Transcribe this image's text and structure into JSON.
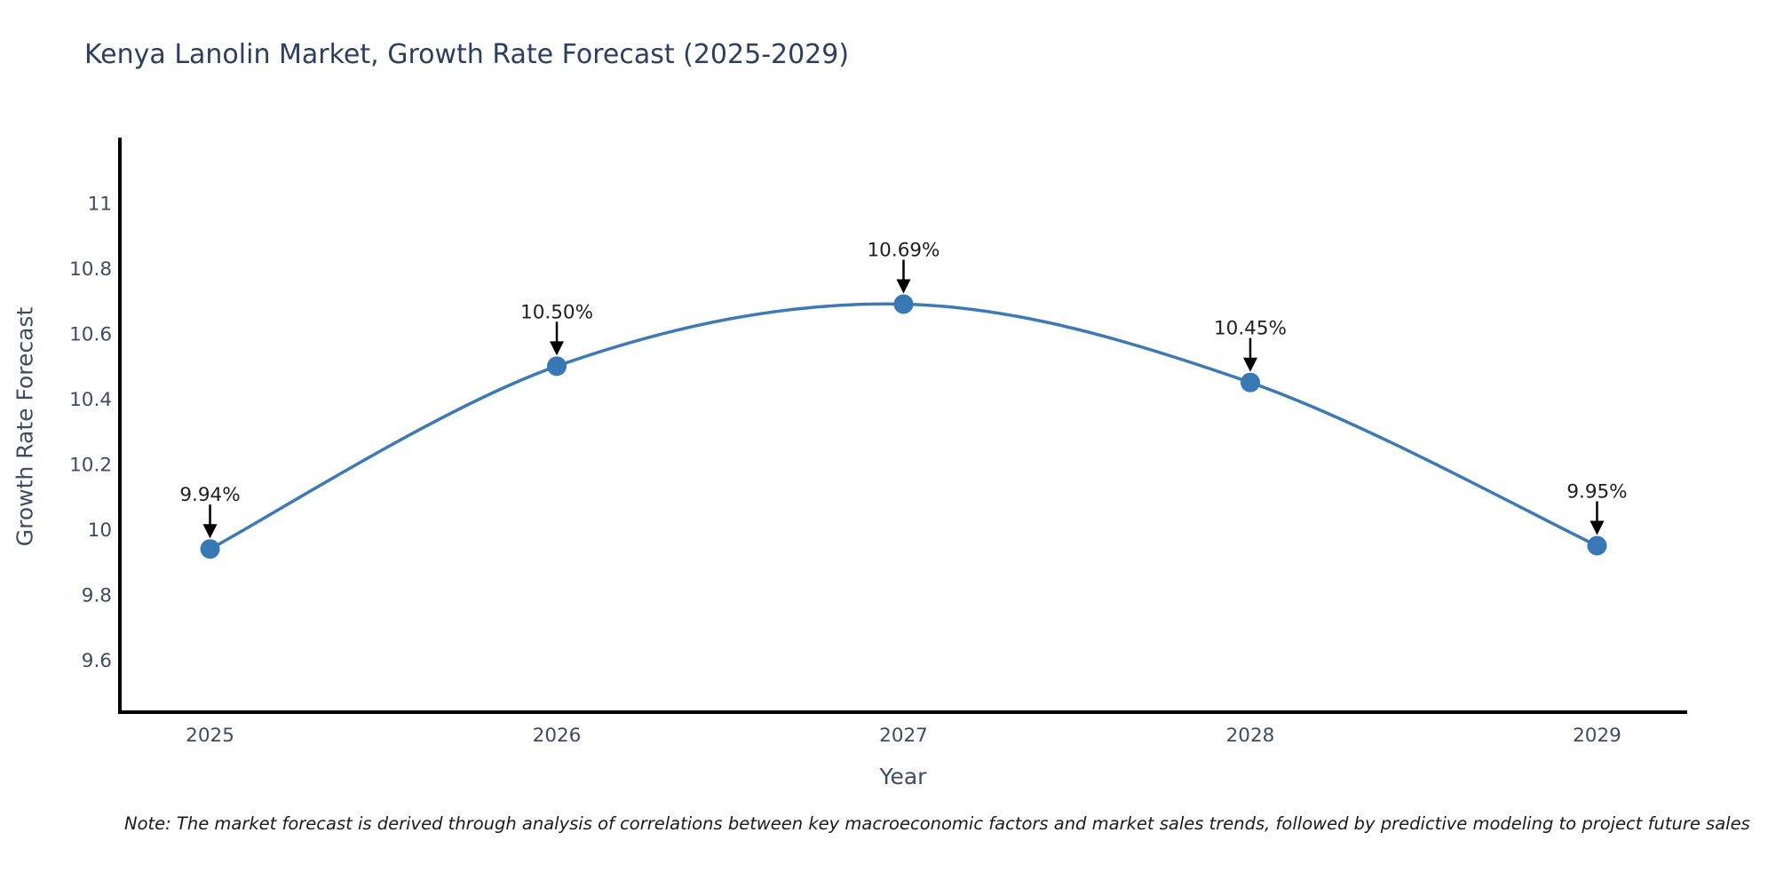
{
  "title": "Kenya Lanolin Market, Growth Rate Forecast (2025-2029)",
  "note": "Note: The market forecast is derived through analysis of correlations between key macroeconomic factors and market sales trends, followed by predictive modeling to project future sales",
  "chart_data": {
    "type": "line",
    "title": "Kenya Lanolin Market, Growth Rate Forecast (2025-2029)",
    "xlabel": "Year",
    "ylabel": "Growth Rate Forecast",
    "x": [
      2025,
      2026,
      2027,
      2028,
      2029
    ],
    "series": [
      {
        "name": "Growth Rate Forecast",
        "values": [
          9.94,
          10.5,
          10.69,
          10.45,
          9.95
        ]
      }
    ],
    "point_labels": [
      "9.94%",
      "10.50%",
      "10.69%",
      "10.45%",
      "9.95%"
    ],
    "xtick_labels": [
      "2025",
      "2026",
      "2027",
      "2028",
      "2029"
    ],
    "yticks": [
      9.6,
      9.8,
      10,
      10.2,
      10.4,
      10.6,
      10.8,
      11
    ],
    "ytick_labels": [
      "9.6",
      "9.8",
      "10",
      "10.2",
      "10.4",
      "10.6",
      "10.8",
      "11"
    ],
    "xlim": [
      2024.74,
      2029.26
    ],
    "ylim": [
      9.44,
      11.2
    ],
    "grid": false,
    "legend_position": "none",
    "line_shape": "spline",
    "colors": {
      "line": "#3d7ab5",
      "marker": "#3878b4",
      "annotation_text": "#1f1f1f",
      "annotation_arrow": "#000000",
      "axis_line": "#000000",
      "title": "#2d3f5e",
      "tick": "#3e4b63",
      "note": "#1a1a1a",
      "background": "#ffffff"
    }
  }
}
